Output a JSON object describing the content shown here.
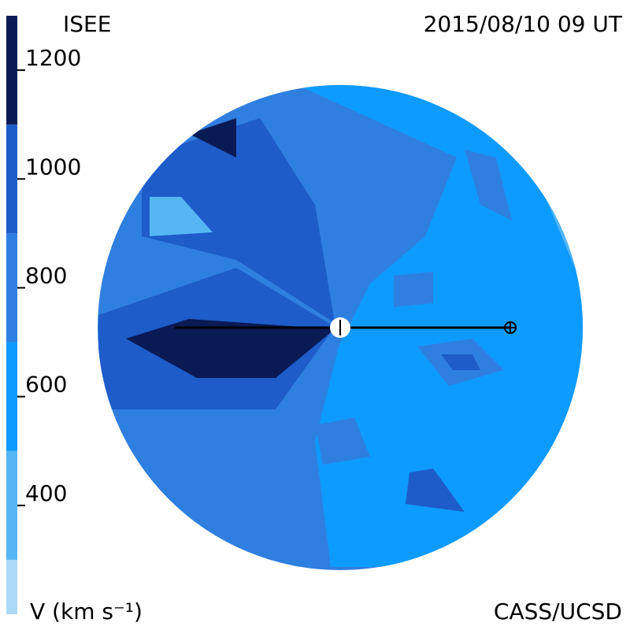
{
  "header": {
    "left": "ISEE",
    "right": "2015/08/10 09 UT"
  },
  "footer": {
    "left": "V (km s⁻¹)",
    "right": "CASS/UCSD"
  },
  "colorbar": {
    "range": [
      200,
      1300
    ],
    "ticks": [
      400,
      600,
      800,
      1000,
      1200
    ],
    "bands": [
      {
        "from": 200,
        "to": 300,
        "color": "#acdaf6"
      },
      {
        "from": 300,
        "to": 500,
        "color": "#55b6f3"
      },
      {
        "from": 500,
        "to": 700,
        "color": "#0e9bff"
      },
      {
        "from": 700,
        "to": 900,
        "color": "#2f7fe0"
      },
      {
        "from": 900,
        "to": 1100,
        "color": "#1d5cc9"
      },
      {
        "from": 1100,
        "to": 1300,
        "color": "#0a1a55"
      }
    ]
  }
}
